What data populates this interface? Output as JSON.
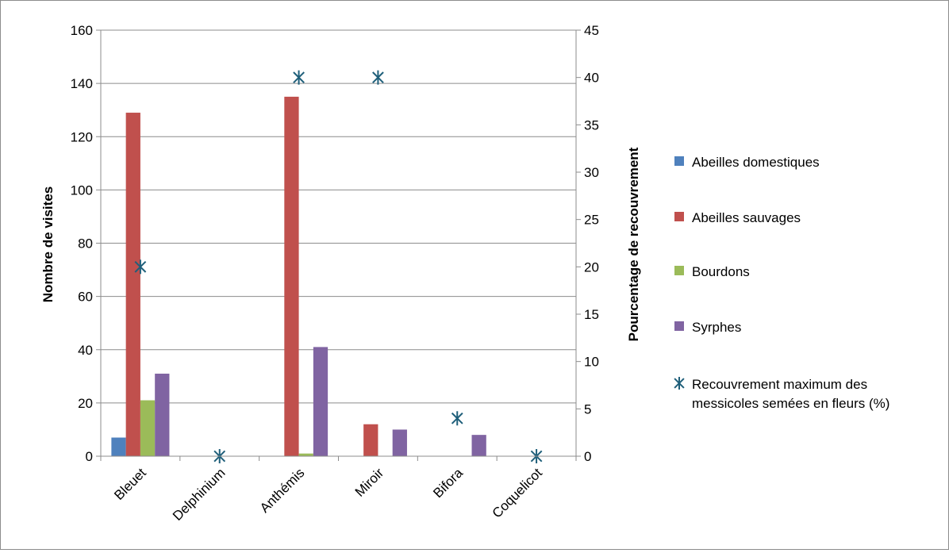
{
  "chart_data": {
    "type": "bar",
    "categories": [
      "Bleuet",
      "Delphinium",
      "Anthémis",
      "Miroir",
      "Bifora",
      "Coquelicot"
    ],
    "ylabel": "Nombre de visites",
    "ylim": [
      0,
      160
    ],
    "yticks": [
      "0",
      "20",
      "40",
      "60",
      "80",
      "100",
      "120",
      "140",
      "160"
    ],
    "y2label": "Pourcentage de recouvrement",
    "y2lim": [
      0,
      45
    ],
    "y2ticks": [
      "0",
      "5",
      "10",
      "15",
      "20",
      "25",
      "30",
      "35",
      "40",
      "45"
    ],
    "grid": "horizontal",
    "legend_position": "right",
    "series": [
      {
        "name": "Abeilles domestiques",
        "type": "bar",
        "axis": "left",
        "color": "#4F81BD",
        "values": [
          7,
          0,
          0,
          0,
          0,
          0
        ]
      },
      {
        "name": "Abeilles sauvages",
        "type": "bar",
        "axis": "left",
        "color": "#C0504D",
        "values": [
          129,
          0,
          135,
          12,
          0,
          0
        ]
      },
      {
        "name": "Bourdons",
        "type": "bar",
        "axis": "left",
        "color": "#9BBB59",
        "values": [
          21,
          0,
          1,
          0,
          0,
          0
        ]
      },
      {
        "name": "Syrphes",
        "type": "bar",
        "axis": "left",
        "color": "#8064A2",
        "values": [
          31,
          0,
          41,
          10,
          8,
          0
        ]
      },
      {
        "name": "Recouvrement maximum des messicoles semées en fleurs (%)",
        "type": "scatter",
        "axis": "right",
        "color": "#1F5F7A",
        "marker": "asterisk",
        "values": [
          20,
          0,
          40,
          40,
          4,
          0
        ]
      }
    ]
  }
}
